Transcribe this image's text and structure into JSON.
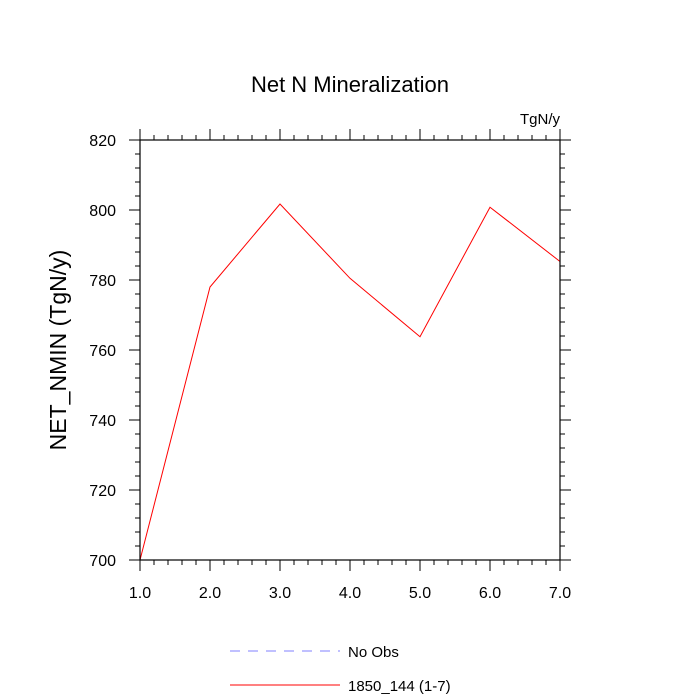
{
  "chart_data": {
    "type": "line",
    "title": "Net N Mineralization",
    "units_label": "TgN/y",
    "xlabel": "",
    "ylabel": "NET_NMIN  (TgN/y)",
    "xlim": [
      1,
      7
    ],
    "ylim": [
      700,
      820
    ],
    "x_ticks": [
      1,
      2,
      3,
      4,
      5,
      6,
      7
    ],
    "x_tick_labels": [
      "1.0",
      "2.0",
      "3.0",
      "4.0",
      "5.0",
      "6.0",
      "7.0"
    ],
    "y_ticks": [
      700,
      720,
      740,
      760,
      780,
      800,
      820
    ],
    "y_tick_labels": [
      "700",
      "720",
      "740",
      "760",
      "780",
      "800",
      "820"
    ],
    "grid": false,
    "legend_position": "bottom-center",
    "series": [
      {
        "name": "1850_144 (1-7)",
        "color": "#ff0000",
        "dash": "solid",
        "x": [
          1,
          2,
          3,
          4,
          5,
          6,
          7
        ],
        "values": [
          700,
          778,
          801.7,
          780.5,
          763.8,
          800.8,
          785.3
        ]
      }
    ],
    "legend": [
      {
        "label": "No Obs",
        "color": "#8080ff",
        "dash": "dashed"
      },
      {
        "label": "1850_144 (1-7)",
        "color": "#ff0000",
        "dash": "solid"
      }
    ]
  }
}
